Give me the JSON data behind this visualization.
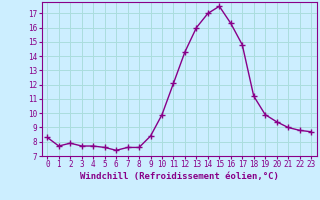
{
  "x": [
    0,
    1,
    2,
    3,
    4,
    5,
    6,
    7,
    8,
    9,
    10,
    11,
    12,
    13,
    14,
    15,
    16,
    17,
    18,
    19,
    20,
    21,
    22,
    23
  ],
  "y": [
    8.3,
    7.7,
    7.9,
    7.7,
    7.7,
    7.6,
    7.4,
    7.6,
    7.6,
    8.4,
    9.9,
    12.1,
    14.3,
    16.0,
    17.0,
    17.5,
    16.3,
    14.8,
    11.2,
    9.9,
    9.4,
    9.0,
    8.8,
    8.7
  ],
  "line_color": "#880088",
  "marker": "+",
  "marker_size": 5,
  "linewidth": 1.0,
  "xlabel": "Windchill (Refroidissement éolien,°C)",
  "xlim_min": -0.5,
  "xlim_max": 23.5,
  "ylim_min": 7,
  "ylim_max": 17.8,
  "yticks": [
    7,
    8,
    9,
    10,
    11,
    12,
    13,
    14,
    15,
    16,
    17
  ],
  "xticks": [
    0,
    1,
    2,
    3,
    4,
    5,
    6,
    7,
    8,
    9,
    10,
    11,
    12,
    13,
    14,
    15,
    16,
    17,
    18,
    19,
    20,
    21,
    22,
    23
  ],
  "background_color": "#cceeff",
  "grid_color": "#aadddd",
  "tick_fontsize": 5.5,
  "xlabel_fontsize": 6.5
}
